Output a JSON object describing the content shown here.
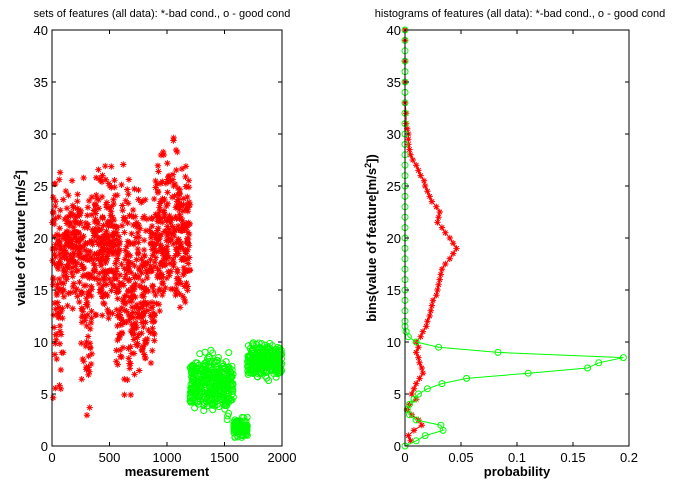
{
  "chart_data": [
    {
      "type": "scatter",
      "title": "sets of features (all data): *-bad cond., o - good cond",
      "xlabel": "measurement",
      "ylabel": "value of feature [m/s²]",
      "xlim": [
        0,
        2000
      ],
      "ylim": [
        0,
        40
      ],
      "xticks": [
        "0",
        "500",
        "1000",
        "1500",
        "2000"
      ],
      "yticks": [
        "0",
        "5",
        "10",
        "15",
        "20",
        "25",
        "30",
        "35",
        "40"
      ],
      "grid": false,
      "series": [
        {
          "marker": "*",
          "color": "#ff0000",
          "x_range": [
            0,
            1200
          ],
          "note_clusters": [
            {
              "x": [
                0,
                100
              ],
              "y": [
                1,
                30
              ]
            },
            {
              "x": [
                100,
                250
              ],
              "y": [
                12,
                27
              ]
            },
            {
              "x": [
                250,
                350
              ],
              "y": [
                1,
                29
              ]
            },
            {
              "x": [
                350,
                550
              ],
              "y": [
                10,
                29
              ]
            },
            {
              "x": [
                550,
                700
              ],
              "y": [
                1,
                29
              ]
            },
            {
              "x": [
                700,
                900
              ],
              "y": [
                2,
                28
              ]
            },
            {
              "x": [
                900,
                1200
              ],
              "y": [
                10,
                31
              ]
            }
          ]
        },
        {
          "marker": "o",
          "color": "#00ff00",
          "x_range": [
            1200,
            2000
          ],
          "note_clusters": [
            {
              "x": [
                1200,
                1580
              ],
              "y": [
                2,
                10
              ]
            },
            {
              "x": [
                1580,
                1700
              ],
              "y": [
                0.5,
                3
              ]
            },
            {
              "x": [
                1700,
                2000
              ],
              "y": [
                6,
                10.5
              ]
            }
          ]
        }
      ]
    },
    {
      "type": "line",
      "title": "histograms of features (all data): *-bad cond., o - good cond",
      "xlabel": "probability",
      "ylabel": "bins(value of feature[m/s²])",
      "xlim": [
        0,
        0.2
      ],
      "ylim": [
        0,
        40
      ],
      "xticks": [
        "0",
        "0.05",
        "0.1",
        "0.15",
        "0.2"
      ],
      "yticks": [
        "0",
        "5",
        "10",
        "15",
        "20",
        "25",
        "30",
        "35",
        "40"
      ],
      "grid": false,
      "series": [
        {
          "marker": "*",
          "color": "#ff0000",
          "points": [
            [
              0.005,
              0.5
            ],
            [
              0.003,
              1.0
            ],
            [
              0.008,
              1.5
            ],
            [
              0.015,
              2.0
            ],
            [
              0.012,
              2.5
            ],
            [
              0.006,
              3.0
            ],
            [
              0.002,
              3.5
            ],
            [
              0.004,
              4.0
            ],
            [
              0.01,
              4.5
            ],
            [
              0.006,
              5.0
            ],
            [
              0.008,
              5.5
            ],
            [
              0.01,
              6.0
            ],
            [
              0.013,
              6.5
            ],
            [
              0.016,
              7.0
            ],
            [
              0.015,
              7.5
            ],
            [
              0.013,
              8.0
            ],
            [
              0.012,
              8.5
            ],
            [
              0.01,
              9.0
            ],
            [
              0.012,
              9.5
            ],
            [
              0.01,
              10.0
            ],
            [
              0.014,
              10.5
            ],
            [
              0.016,
              11.0
            ],
            [
              0.019,
              11.5
            ],
            [
              0.02,
              12.0
            ],
            [
              0.022,
              12.5
            ],
            [
              0.023,
              13.0
            ],
            [
              0.024,
              13.5
            ],
            [
              0.025,
              14.0
            ],
            [
              0.028,
              14.5
            ],
            [
              0.029,
              15.0
            ],
            [
              0.03,
              15.5
            ],
            [
              0.031,
              16.0
            ],
            [
              0.032,
              16.5
            ],
            [
              0.033,
              17.0
            ],
            [
              0.036,
              17.5
            ],
            [
              0.04,
              18.0
            ],
            [
              0.043,
              18.5
            ],
            [
              0.046,
              19.0
            ],
            [
              0.043,
              19.5
            ],
            [
              0.04,
              20.0
            ],
            [
              0.036,
              20.5
            ],
            [
              0.033,
              21.0
            ],
            [
              0.029,
              21.5
            ],
            [
              0.03,
              22.0
            ],
            [
              0.031,
              22.5
            ],
            [
              0.028,
              23.0
            ],
            [
              0.024,
              23.5
            ],
            [
              0.022,
              24.0
            ],
            [
              0.02,
              24.5
            ],
            [
              0.018,
              25.0
            ],
            [
              0.017,
              25.5
            ],
            [
              0.014,
              26.0
            ],
            [
              0.012,
              26.5
            ],
            [
              0.01,
              27.0
            ],
            [
              0.007,
              27.5
            ],
            [
              0.005,
              28.0
            ],
            [
              0.004,
              28.5
            ],
            [
              0.003,
              29.0
            ],
            [
              0.003,
              29.5
            ],
            [
              0.003,
              30.0
            ],
            [
              0.002,
              30.5
            ],
            [
              0.001,
              31.0
            ],
            [
              0.001,
              32.0
            ],
            [
              0.0,
              33.0
            ],
            [
              0.0,
              35.0
            ],
            [
              0.0,
              37.0
            ],
            [
              0.0,
              39.0
            ],
            [
              0.0,
              40.0
            ]
          ]
        },
        {
          "marker": "o",
          "color": "#00ff00",
          "points": [
            [
              0.0,
              0.0
            ],
            [
              0.01,
              0.5
            ],
            [
              0.018,
              1.0
            ],
            [
              0.034,
              1.5
            ],
            [
              0.032,
              2.0
            ],
            [
              0.01,
              2.5
            ],
            [
              0.004,
              3.0
            ],
            [
              0.002,
              3.5
            ],
            [
              0.004,
              4.0
            ],
            [
              0.008,
              4.5
            ],
            [
              0.012,
              5.0
            ],
            [
              0.02,
              5.5
            ],
            [
              0.033,
              6.0
            ],
            [
              0.055,
              6.5
            ],
            [
              0.11,
              7.0
            ],
            [
              0.163,
              7.5
            ],
            [
              0.173,
              8.0
            ],
            [
              0.195,
              8.5
            ],
            [
              0.083,
              9.0
            ],
            [
              0.03,
              9.5
            ],
            [
              0.01,
              10.0
            ],
            [
              0.003,
              10.5
            ],
            [
              0.001,
              11.0
            ],
            [
              0.0,
              11.5
            ],
            [
              0.0,
              12.0
            ],
            [
              0.0,
              13.0
            ],
            [
              0.0,
              14.0
            ],
            [
              0.0,
              15.0
            ],
            [
              0.0,
              16.0
            ],
            [
              0.0,
              17.0
            ],
            [
              0.0,
              18.0
            ],
            [
              0.0,
              19.0
            ],
            [
              0.0,
              20.0
            ],
            [
              0.0,
              21.0
            ],
            [
              0.0,
              22.0
            ],
            [
              0.0,
              23.0
            ],
            [
              0.0,
              24.0
            ],
            [
              0.0,
              25.0
            ],
            [
              0.0,
              26.0
            ],
            [
              0.0,
              27.0
            ],
            [
              0.0,
              28.0
            ],
            [
              0.0,
              29.0
            ],
            [
              0.0,
              30.0
            ],
            [
              0.0,
              31.0
            ],
            [
              0.0,
              32.0
            ],
            [
              0.0,
              33.0
            ],
            [
              0.0,
              34.0
            ],
            [
              0.0,
              35.0
            ],
            [
              0.0,
              36.0
            ],
            [
              0.0,
              37.0
            ],
            [
              0.0,
              38.0
            ],
            [
              0.0,
              39.0
            ],
            [
              0.0,
              40.0
            ]
          ]
        }
      ]
    }
  ]
}
